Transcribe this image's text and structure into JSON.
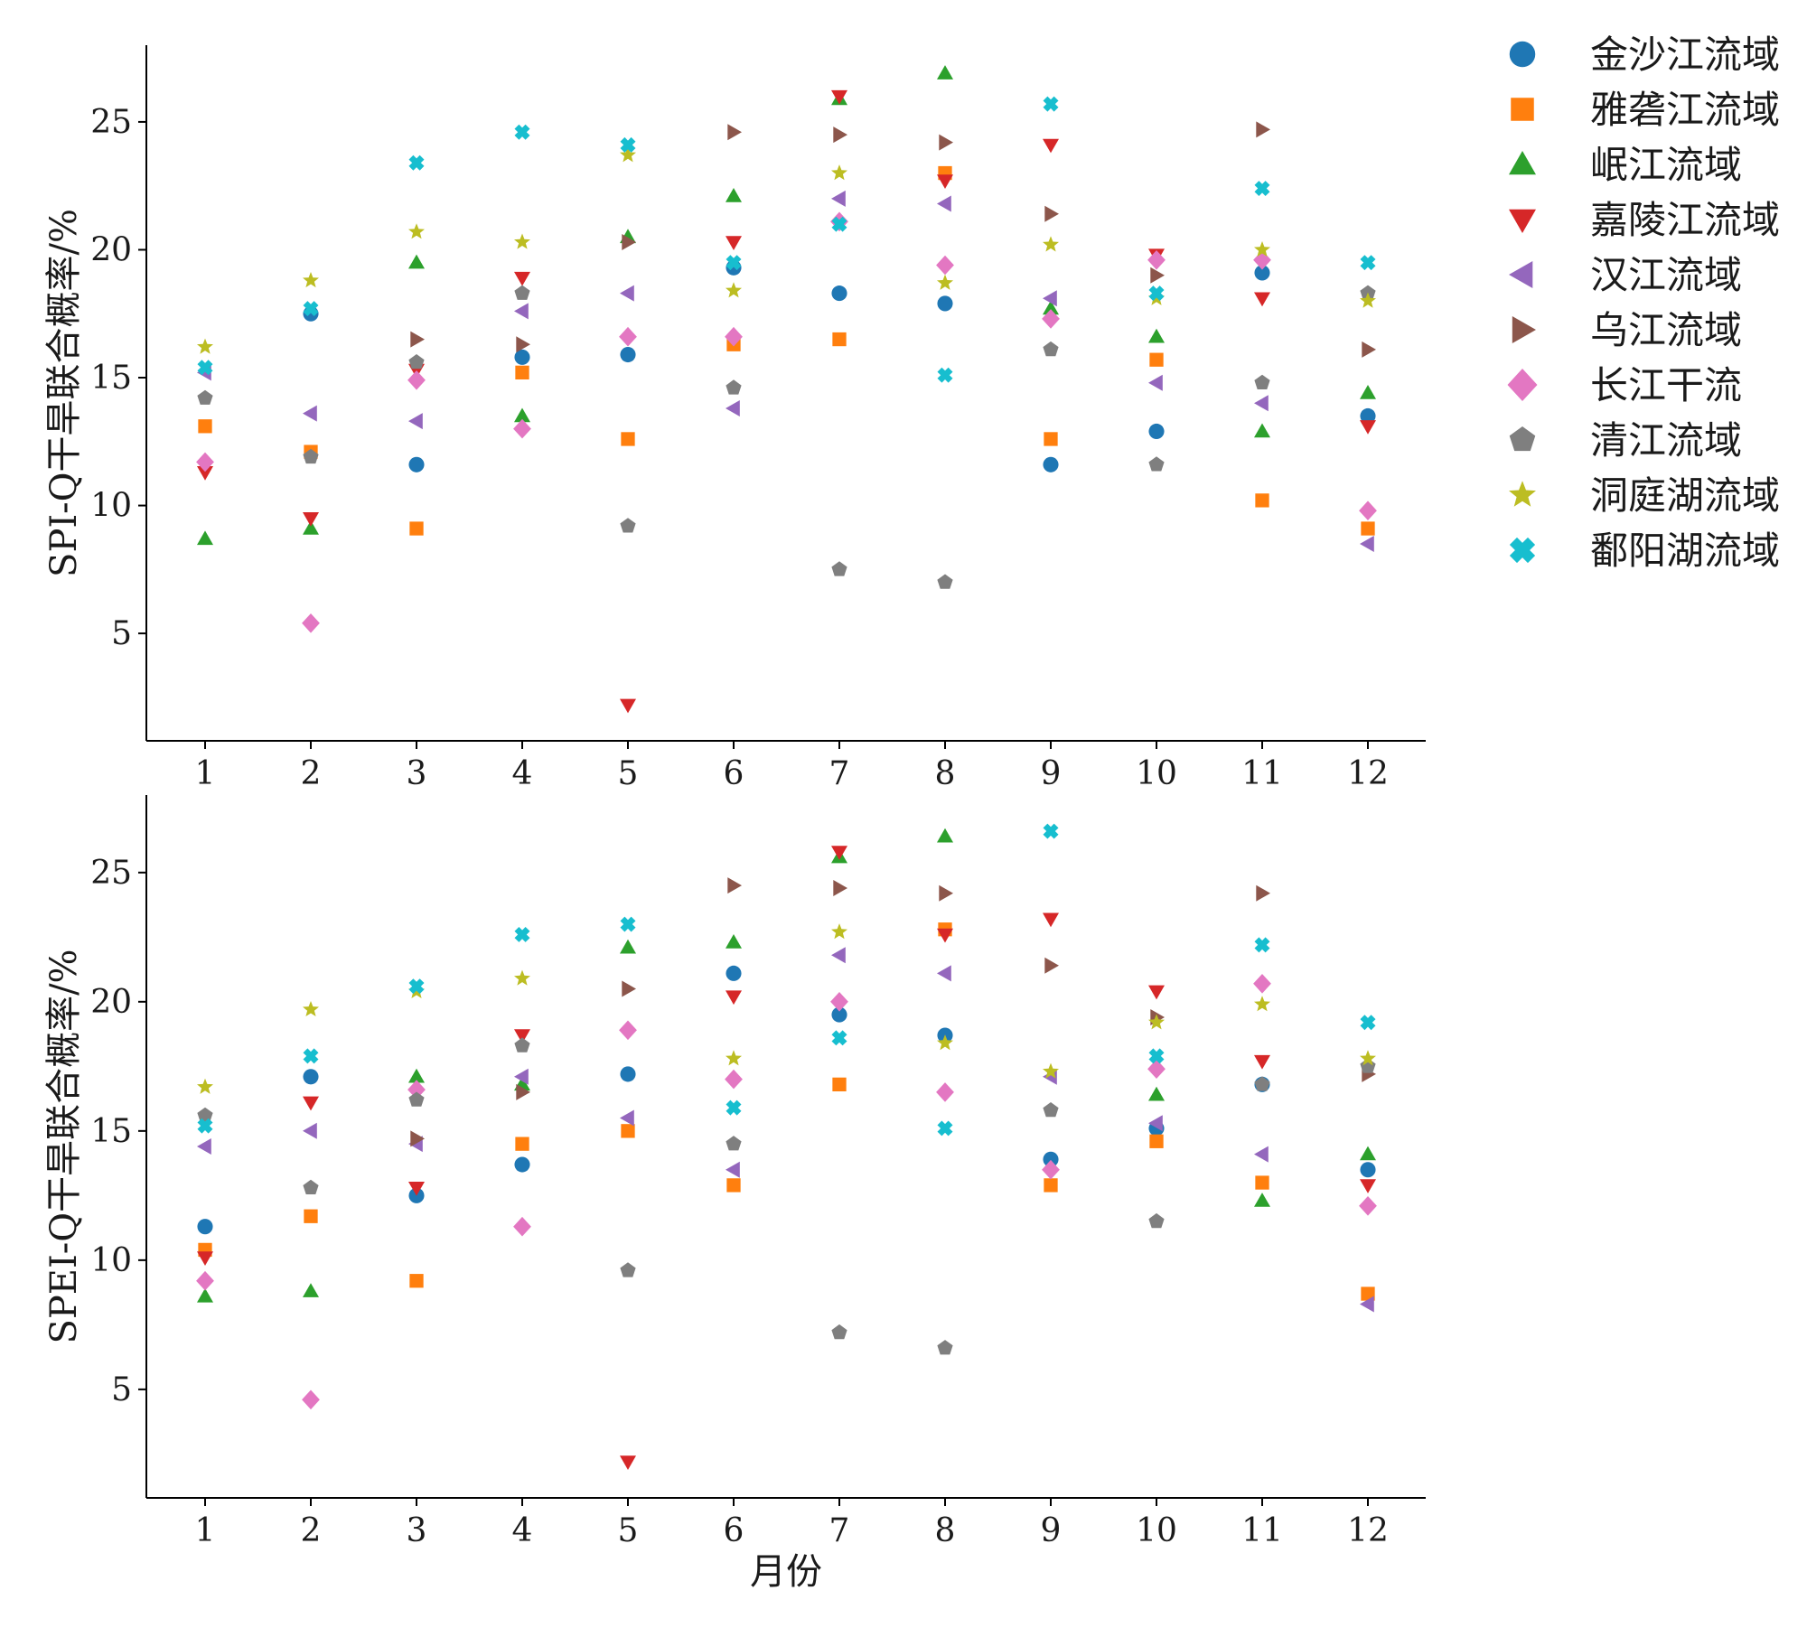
{
  "chart_data": [
    {
      "type": "scatter",
      "ylabel": "SPI-Q干旱联合概率/%",
      "xlabel": "",
      "x": [
        1,
        2,
        3,
        4,
        5,
        6,
        7,
        8,
        9,
        10,
        11,
        12
      ],
      "xticks": [
        "1",
        "2",
        "3",
        "4",
        "5",
        "6",
        "7",
        "8",
        "9",
        "10",
        "11",
        "12"
      ],
      "yticks": [
        "5",
        "10",
        "15",
        "20",
        "25"
      ],
      "ylim": [
        0.8,
        28
      ],
      "grid": false,
      "series": [
        {
          "name": "金沙江流域",
          "marker": "circle",
          "color": "#1f77b4",
          "values": [
            null,
            17.5,
            11.6,
            15.8,
            15.9,
            19.3,
            18.3,
            17.9,
            11.6,
            12.9,
            19.1,
            13.5
          ]
        },
        {
          "name": "雅砻江流域",
          "marker": "square",
          "color": "#ff7f0e",
          "values": [
            13.1,
            12.1,
            9.1,
            15.2,
            12.6,
            16.3,
            16.5,
            23.0,
            12.6,
            15.7,
            10.2,
            9.1
          ]
        },
        {
          "name": "岷江流域",
          "marker": "triangle-up",
          "color": "#2ca02c",
          "values": [
            8.7,
            9.1,
            19.5,
            13.5,
            20.5,
            22.1,
            25.9,
            26.9,
            17.7,
            16.6,
            12.9,
            14.4
          ]
        },
        {
          "name": "嘉陵江流域",
          "marker": "triangle-down",
          "color": "#d62728",
          "values": [
            11.3,
            9.5,
            15.3,
            18.9,
            2.2,
            20.3,
            26.0,
            22.7,
            24.1,
            19.8,
            18.1,
            13.1
          ]
        },
        {
          "name": "汉江流域",
          "marker": "triangle-left",
          "color": "#9467bd",
          "values": [
            15.2,
            13.6,
            13.3,
            17.6,
            18.3,
            13.8,
            22.0,
            21.8,
            18.1,
            14.8,
            14.0,
            8.5
          ]
        },
        {
          "name": "乌江流域",
          "marker": "triangle-right",
          "color": "#8c564b",
          "values": [
            null,
            null,
            16.5,
            16.3,
            20.3,
            24.6,
            24.5,
            24.2,
            21.4,
            19.0,
            24.7,
            16.1
          ]
        },
        {
          "name": "长江干流",
          "marker": "diamond",
          "color": "#e377c2",
          "values": [
            11.7,
            5.4,
            14.9,
            13.0,
            16.6,
            16.6,
            21.1,
            19.4,
            17.3,
            19.6,
            19.6,
            9.8
          ]
        },
        {
          "name": "清江流域",
          "marker": "pentagon",
          "color": "#7f7f7f",
          "values": [
            14.2,
            11.9,
            15.6,
            18.3,
            9.2,
            14.6,
            7.5,
            7.0,
            16.1,
            11.6,
            14.8,
            18.3
          ]
        },
        {
          "name": "洞庭湖流域",
          "marker": "star",
          "color": "#bcbd22",
          "values": [
            16.2,
            18.8,
            20.7,
            20.3,
            23.7,
            18.4,
            23.0,
            18.7,
            20.2,
            18.1,
            20.0,
            18.0
          ]
        },
        {
          "name": "鄱阳湖流域",
          "marker": "x",
          "color": "#17becf",
          "values": [
            15.4,
            17.7,
            23.4,
            24.6,
            24.1,
            19.5,
            21.0,
            15.1,
            25.7,
            18.3,
            22.4,
            19.5
          ]
        }
      ]
    },
    {
      "type": "scatter",
      "ylabel": "SPEI-Q干旱联合概率/%",
      "xlabel": "月份",
      "x": [
        1,
        2,
        3,
        4,
        5,
        6,
        7,
        8,
        9,
        10,
        11,
        12
      ],
      "xticks": [
        "1",
        "2",
        "3",
        "4",
        "5",
        "6",
        "7",
        "8",
        "9",
        "10",
        "11",
        "12"
      ],
      "yticks": [
        "5",
        "10",
        "15",
        "20",
        "25"
      ],
      "ylim": [
        0.8,
        28
      ],
      "grid": false,
      "series": [
        {
          "name": "金沙江流域",
          "marker": "circle",
          "color": "#1f77b4",
          "values": [
            11.3,
            17.1,
            12.5,
            13.7,
            17.2,
            21.1,
            19.5,
            18.7,
            13.9,
            15.1,
            16.8,
            13.5
          ]
        },
        {
          "name": "雅砻江流域",
          "marker": "square",
          "color": "#ff7f0e",
          "values": [
            10.4,
            11.7,
            9.2,
            14.5,
            15.0,
            12.9,
            16.8,
            22.8,
            12.9,
            14.6,
            13.0,
            8.7
          ]
        },
        {
          "name": "岷江流域",
          "marker": "triangle-up",
          "color": "#2ca02c",
          "values": [
            8.6,
            8.8,
            17.1,
            16.8,
            22.1,
            22.3,
            25.6,
            26.4,
            null,
            16.4,
            12.3,
            14.1
          ]
        },
        {
          "name": "嘉陵江流域",
          "marker": "triangle-down",
          "color": "#d62728",
          "values": [
            10.1,
            16.1,
            12.8,
            18.7,
            2.2,
            20.2,
            25.8,
            22.6,
            23.2,
            20.4,
            17.7,
            12.9
          ]
        },
        {
          "name": "汉江流域",
          "marker": "triangle-left",
          "color": "#9467bd",
          "values": [
            14.4,
            15.0,
            14.5,
            17.1,
            15.5,
            13.5,
            21.8,
            21.1,
            17.1,
            15.3,
            14.1,
            8.3
          ]
        },
        {
          "name": "乌江流域",
          "marker": "triangle-right",
          "color": "#8c564b",
          "values": [
            null,
            null,
            14.7,
            16.5,
            20.5,
            24.5,
            24.4,
            24.2,
            21.4,
            19.4,
            24.2,
            17.2
          ]
        },
        {
          "name": "长江干流",
          "marker": "diamond",
          "color": "#e377c2",
          "values": [
            9.2,
            4.6,
            16.6,
            11.3,
            18.9,
            17.0,
            20.0,
            16.5,
            13.5,
            17.4,
            20.7,
            12.1
          ]
        },
        {
          "name": "清江流域",
          "marker": "pentagon",
          "color": "#7f7f7f",
          "values": [
            15.6,
            12.8,
            16.2,
            18.3,
            9.6,
            14.5,
            7.2,
            6.6,
            15.8,
            11.5,
            16.8,
            17.5
          ]
        },
        {
          "name": "洞庭湖流域",
          "marker": "star",
          "color": "#bcbd22",
          "values": [
            16.7,
            19.7,
            20.4,
            20.9,
            null,
            17.8,
            22.7,
            18.4,
            17.3,
            19.2,
            19.9,
            17.8
          ]
        },
        {
          "name": "鄱阳湖流域",
          "marker": "x",
          "color": "#17becf",
          "values": [
            15.2,
            17.9,
            20.6,
            22.6,
            23.0,
            15.9,
            18.6,
            15.1,
            26.6,
            17.9,
            22.2,
            19.2
          ]
        }
      ]
    }
  ],
  "legend": {
    "placement": "top-right outside",
    "items": [
      "金沙江流域",
      "雅砻江流域",
      "岷江流域",
      "嘉陵江流域",
      "汉江流域",
      "乌江流域",
      "长江干流",
      "清江流域",
      "洞庭湖流域",
      "鄱阳湖流域"
    ]
  }
}
